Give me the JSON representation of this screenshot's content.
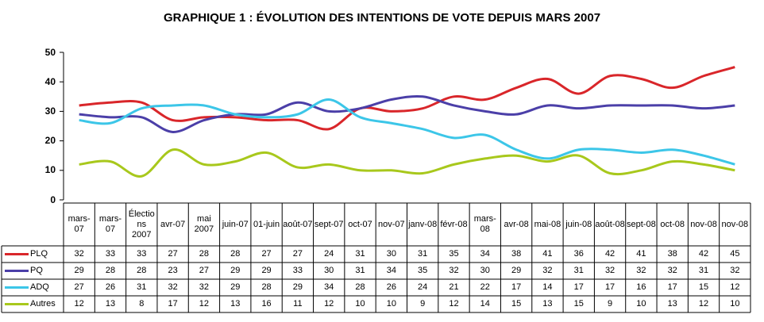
{
  "chart_data": {
    "type": "line",
    "title": "GRAPHIQUE 1 : ÉVOLUTION DES INTENTIONS DE VOTE DEPUIS MARS 2007",
    "categories": [
      "mars-07",
      "mars-07",
      "Élections 2007",
      "avr-07",
      "mai 2007",
      "juin-07",
      "01-juin",
      "août-07",
      "sept-07",
      "oct-07",
      "nov-07",
      "janv-08",
      "févr-08",
      "mars-08",
      "avr-08",
      "mai-08",
      "juin-08",
      "août-08",
      "sept-08",
      "oct-08",
      "nov-08",
      "nov-08"
    ],
    "series": [
      {
        "name": "PLQ",
        "color": "#d9262a",
        "values": [
          32,
          33,
          33,
          27,
          28,
          28,
          27,
          27,
          24,
          31,
          30,
          31,
          35,
          34,
          38,
          41,
          36,
          42,
          41,
          38,
          42,
          45
        ]
      },
      {
        "name": "PQ",
        "color": "#4b3fa8",
        "values": [
          29,
          28,
          28,
          23,
          27,
          29,
          29,
          33,
          30,
          31,
          34,
          35,
          32,
          30,
          29,
          32,
          31,
          32,
          32,
          32,
          31,
          32
        ]
      },
      {
        "name": "ADQ",
        "color": "#3cc6e8",
        "values": [
          27,
          26,
          31,
          32,
          32,
          29,
          28,
          29,
          34,
          28,
          26,
          24,
          21,
          22,
          17,
          14,
          17,
          17,
          16,
          17,
          15,
          12
        ]
      },
      {
        "name": "Autres",
        "color": "#a8c81c",
        "values": [
          12,
          13,
          8,
          17,
          12,
          13,
          16,
          11,
          12,
          10,
          10,
          9,
          12,
          14,
          15,
          13,
          15,
          9,
          10,
          13,
          12,
          10
        ]
      }
    ],
    "ylim": [
      0,
      50
    ],
    "yticks": [
      0,
      10,
      20,
      30,
      40,
      50
    ]
  }
}
